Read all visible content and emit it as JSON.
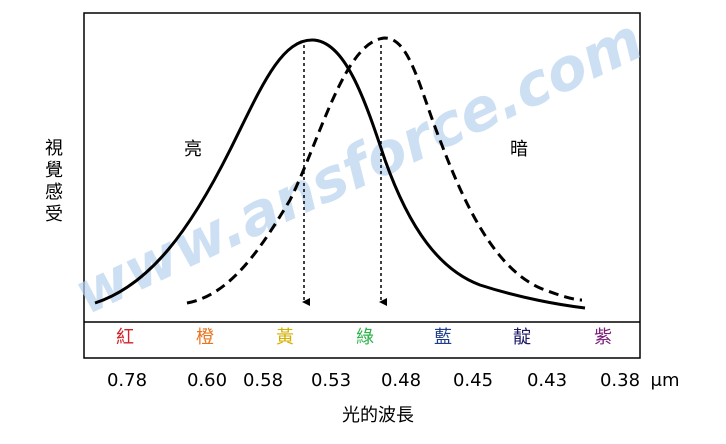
{
  "y_label": "視覺感受",
  "curves": {
    "bright": "亮",
    "dark": "暗"
  },
  "colors": [
    "紅",
    "橙",
    "黃",
    "綠",
    "藍",
    "靛",
    "紫"
  ],
  "wavelengths": [
    "0.78",
    "0.60",
    "0.58",
    "0.53",
    "0.48",
    "0.45",
    "0.43",
    "0.38"
  ],
  "unit": "μm",
  "x_label": "光的波長",
  "watermark": "www.ansforce.com"
}
